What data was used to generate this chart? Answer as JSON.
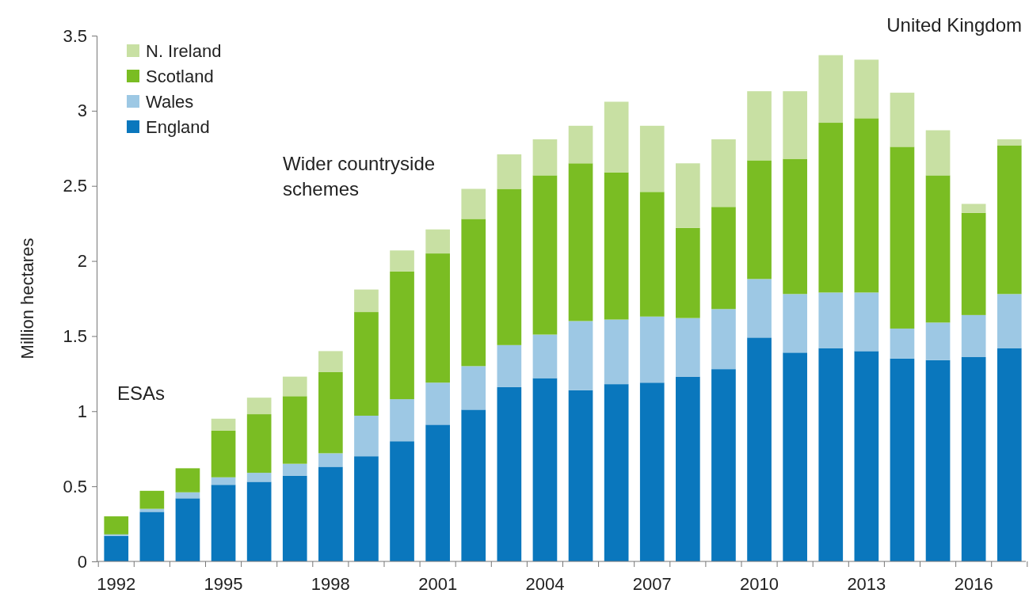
{
  "chart_data": {
    "type": "bar",
    "stacked": true,
    "ylabel": "Million  hectares",
    "categories": [
      "1992",
      null,
      null,
      "1995",
      null,
      null,
      "1998",
      null,
      null,
      "2001",
      null,
      null,
      "2004",
      null,
      null,
      "2007",
      null,
      null,
      "2010",
      null,
      null,
      "2013",
      null,
      null,
      "2016",
      null
    ],
    "series": [
      {
        "name": "England",
        "color": "#0a77bd",
        "values": [
          0.17,
          0.33,
          0.42,
          0.51,
          0.53,
          0.57,
          0.63,
          0.7,
          0.8,
          0.91,
          1.01,
          1.16,
          1.22,
          1.14,
          1.18,
          1.19,
          1.23,
          1.28,
          1.49,
          1.39,
          1.42,
          1.4,
          1.35,
          1.34,
          1.36,
          1.42
        ]
      },
      {
        "name": "Wales",
        "color": "#9dc8e4",
        "values": [
          0.01,
          0.02,
          0.04,
          0.05,
          0.06,
          0.08,
          0.09,
          0.27,
          0.28,
          0.28,
          0.29,
          0.28,
          0.29,
          0.46,
          0.43,
          0.44,
          0.39,
          0.4,
          0.39,
          0.39,
          0.37,
          0.39,
          0.2,
          0.25,
          0.28,
          0.36
        ]
      },
      {
        "name": "Scotland",
        "color": "#7abd23",
        "values": [
          0.12,
          0.12,
          0.16,
          0.31,
          0.39,
          0.45,
          0.54,
          0.69,
          0.85,
          0.86,
          0.98,
          1.04,
          1.06,
          1.05,
          0.98,
          0.83,
          0.6,
          0.68,
          0.79,
          0.9,
          1.13,
          1.16,
          1.21,
          0.98,
          0.68,
          0.99
        ]
      },
      {
        "name": "N. Ireland",
        "color": "#c8e0a3",
        "values": [
          0,
          0,
          0,
          0.08,
          0.11,
          0.13,
          0.14,
          0.15,
          0.14,
          0.16,
          0.2,
          0.23,
          0.24,
          0.25,
          0.47,
          0.44,
          0.43,
          0.45,
          0.46,
          0.45,
          0.45,
          0.39,
          0.36,
          0.3,
          0.06,
          0.04
        ]
      }
    ],
    "ylim": [
      0,
      3.5
    ],
    "yticks": [
      0,
      0.5,
      1,
      1.5,
      2,
      2.5,
      3,
      3.5
    ],
    "legend": "top left",
    "annotations": [
      "United Kingdom",
      "ESAs",
      "Wider countryside schemes"
    ]
  }
}
